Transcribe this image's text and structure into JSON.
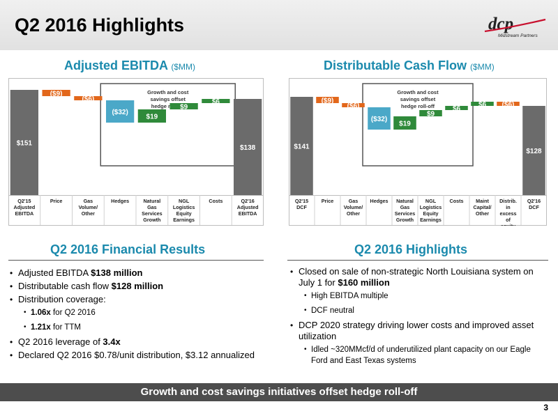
{
  "slide": {
    "title": "Q2 2016 Highlights",
    "logo_text": "Midstream Partners",
    "banner": "Growth and cost savings initiatives offset hedge roll-off",
    "page_number": "3"
  },
  "chart_data": [
    {
      "type": "bar",
      "subtype": "waterfall",
      "title": "Adjusted EBITDA",
      "unit": "($MM)",
      "categories": [
        "Q2'15 Adjusted EBITDA",
        "Price",
        "Gas Volume/ Other",
        "Hedges",
        "Natural Gas Services Growth",
        "NGL Logistics Equity Earnings",
        "Costs",
        "Q2'16 Adjusted EBITDA"
      ],
      "values": [
        151,
        -9,
        -6,
        -32,
        19,
        9,
        6,
        138
      ],
      "labels": [
        "$151",
        "($9)",
        "($6)",
        "($32)",
        "$19",
        "$9",
        "$6",
        "$138"
      ],
      "kinds": [
        "total",
        "neg",
        "neg",
        "hedge",
        "pos",
        "pos",
        "pos",
        "total"
      ],
      "annotation": "Growth and cost savings offset hedge roll-off"
    },
    {
      "type": "bar",
      "subtype": "waterfall",
      "title": "Distributable Cash Flow",
      "unit": "($MM)",
      "categories": [
        "Q2'15 DCF",
        "Price",
        "Gas Volume/ Other",
        "Hedges",
        "Natural Gas Services Growth",
        "NGL Logistics Equity Earnings",
        "Costs",
        "Maint Capital/ Other",
        "Distrib. in excess of equity earnings",
        "Q2'16 DCF"
      ],
      "values": [
        141,
        -9,
        -6,
        -32,
        19,
        9,
        6,
        6,
        -6,
        128
      ],
      "labels": [
        "$141",
        "($9)",
        "($6)",
        "($32)",
        "$19",
        "$9",
        "$6",
        "$6",
        "($6)",
        "$128"
      ],
      "kinds": [
        "total",
        "neg",
        "neg",
        "hedge",
        "pos",
        "pos",
        "pos",
        "pos",
        "neg",
        "total"
      ],
      "annotation": "Growth and cost savings offset hedge roll-off"
    }
  ],
  "colors": {
    "total": "#6b6b6b",
    "neg": "#e2671b",
    "hedge": "#4ba8c8",
    "pos": "#2f8a3a",
    "accent": "#1b8aad"
  },
  "financial": {
    "title": "Q2 2016 Financial Results",
    "items": [
      {
        "pre": "Adjusted EBITDA ",
        "bold": "$138 million",
        "post": ""
      },
      {
        "pre": "Distributable cash flow ",
        "bold": "$128 million",
        "post": ""
      },
      {
        "pre": "Distribution coverage:",
        "bold": "",
        "post": ""
      },
      {
        "pre": "",
        "bold": "1.06x",
        "post": " for Q2 2016",
        "sub": true
      },
      {
        "pre": "",
        "bold": "1.21x",
        "post": " for TTM",
        "sub": true
      },
      {
        "pre": "Q2 2016 leverage of ",
        "bold": "3.4x",
        "post": ""
      },
      {
        "pre": "Declared Q2 2016 $0.78/unit distribution, $3.12 annualized",
        "bold": "",
        "post": ""
      }
    ]
  },
  "highlights": {
    "title": "Q2 2016 Highlights",
    "items": [
      {
        "pre": "Closed on sale of non-strategic North Louisiana system on July 1 for ",
        "bold": "$160 million",
        "post": ""
      },
      {
        "pre": "High EBITDA multiple",
        "bold": "",
        "post": "",
        "sub": true
      },
      {
        "pre": "DCF neutral",
        "bold": "",
        "post": "",
        "sub": true
      },
      {
        "pre": "DCP 2020 strategy driving lower costs and improved asset utilization",
        "bold": "",
        "post": ""
      },
      {
        "pre": "Idled ~320MMcf/d of underutilized plant capacity on our Eagle Ford and East Texas systems",
        "bold": "",
        "post": "",
        "sub": true
      }
    ]
  }
}
